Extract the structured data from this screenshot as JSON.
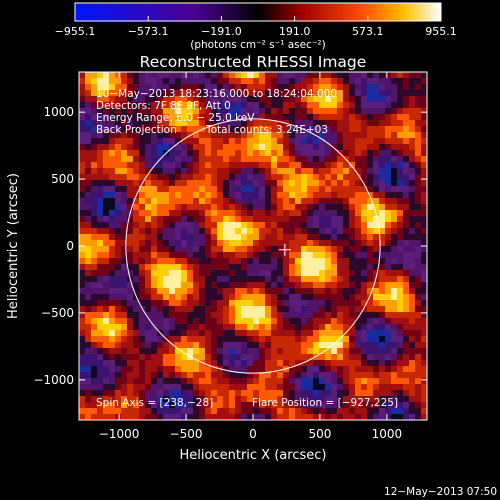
{
  "chart_data": {
    "type": "heatmap",
    "title": "Reconstructed RHESSI Image",
    "xlabel": "Heliocentric X (arcsec)",
    "ylabel": "Heliocentric Y (arcsec)",
    "xlim": [
      -1300,
      1300
    ],
    "ylim": [
      -1300,
      1300
    ],
    "x_ticks": [
      -1000,
      -500,
      0,
      500,
      1000
    ],
    "y_ticks": [
      -1000,
      -500,
      0,
      500,
      1000
    ],
    "x_tick_labels": [
      "−1000",
      "−500",
      "0",
      "500",
      "1000"
    ],
    "y_tick_labels": [
      "−1000",
      "−500",
      "0",
      "500",
      "1000"
    ],
    "colorbar": {
      "ticks": [
        -955.1,
        -573.1,
        -191.0,
        191.0,
        573.1,
        955.1
      ],
      "tick_labels": [
        "−955.1",
        "−573.1",
        "−191.0",
        "191.0",
        "573.1",
        "955.1"
      ],
      "units": "(photons cm⁻² s⁻¹ asec⁻²)",
      "range": [
        -955.1,
        955.1
      ]
    },
    "annotations": {
      "line1": "10−May−2013 18:23:16.000 to 18:24:04.000",
      "line2": "Detectors: 7F 8F 9F, Att 0",
      "line3": "Energy Range: 6.0 − 25.0 keV",
      "line4_left": "Back Projection",
      "line4_right": "Total counts: 3.24E+03",
      "spin_axis": "Spin Axis = [238,−28]",
      "flare_position": "Flare Position = [−927,225]"
    },
    "solar_limb_radius_arcsec": 950,
    "center_cross": [
      238,
      -28
    ],
    "footer_timestamp": "12−May−2013 07:50"
  }
}
